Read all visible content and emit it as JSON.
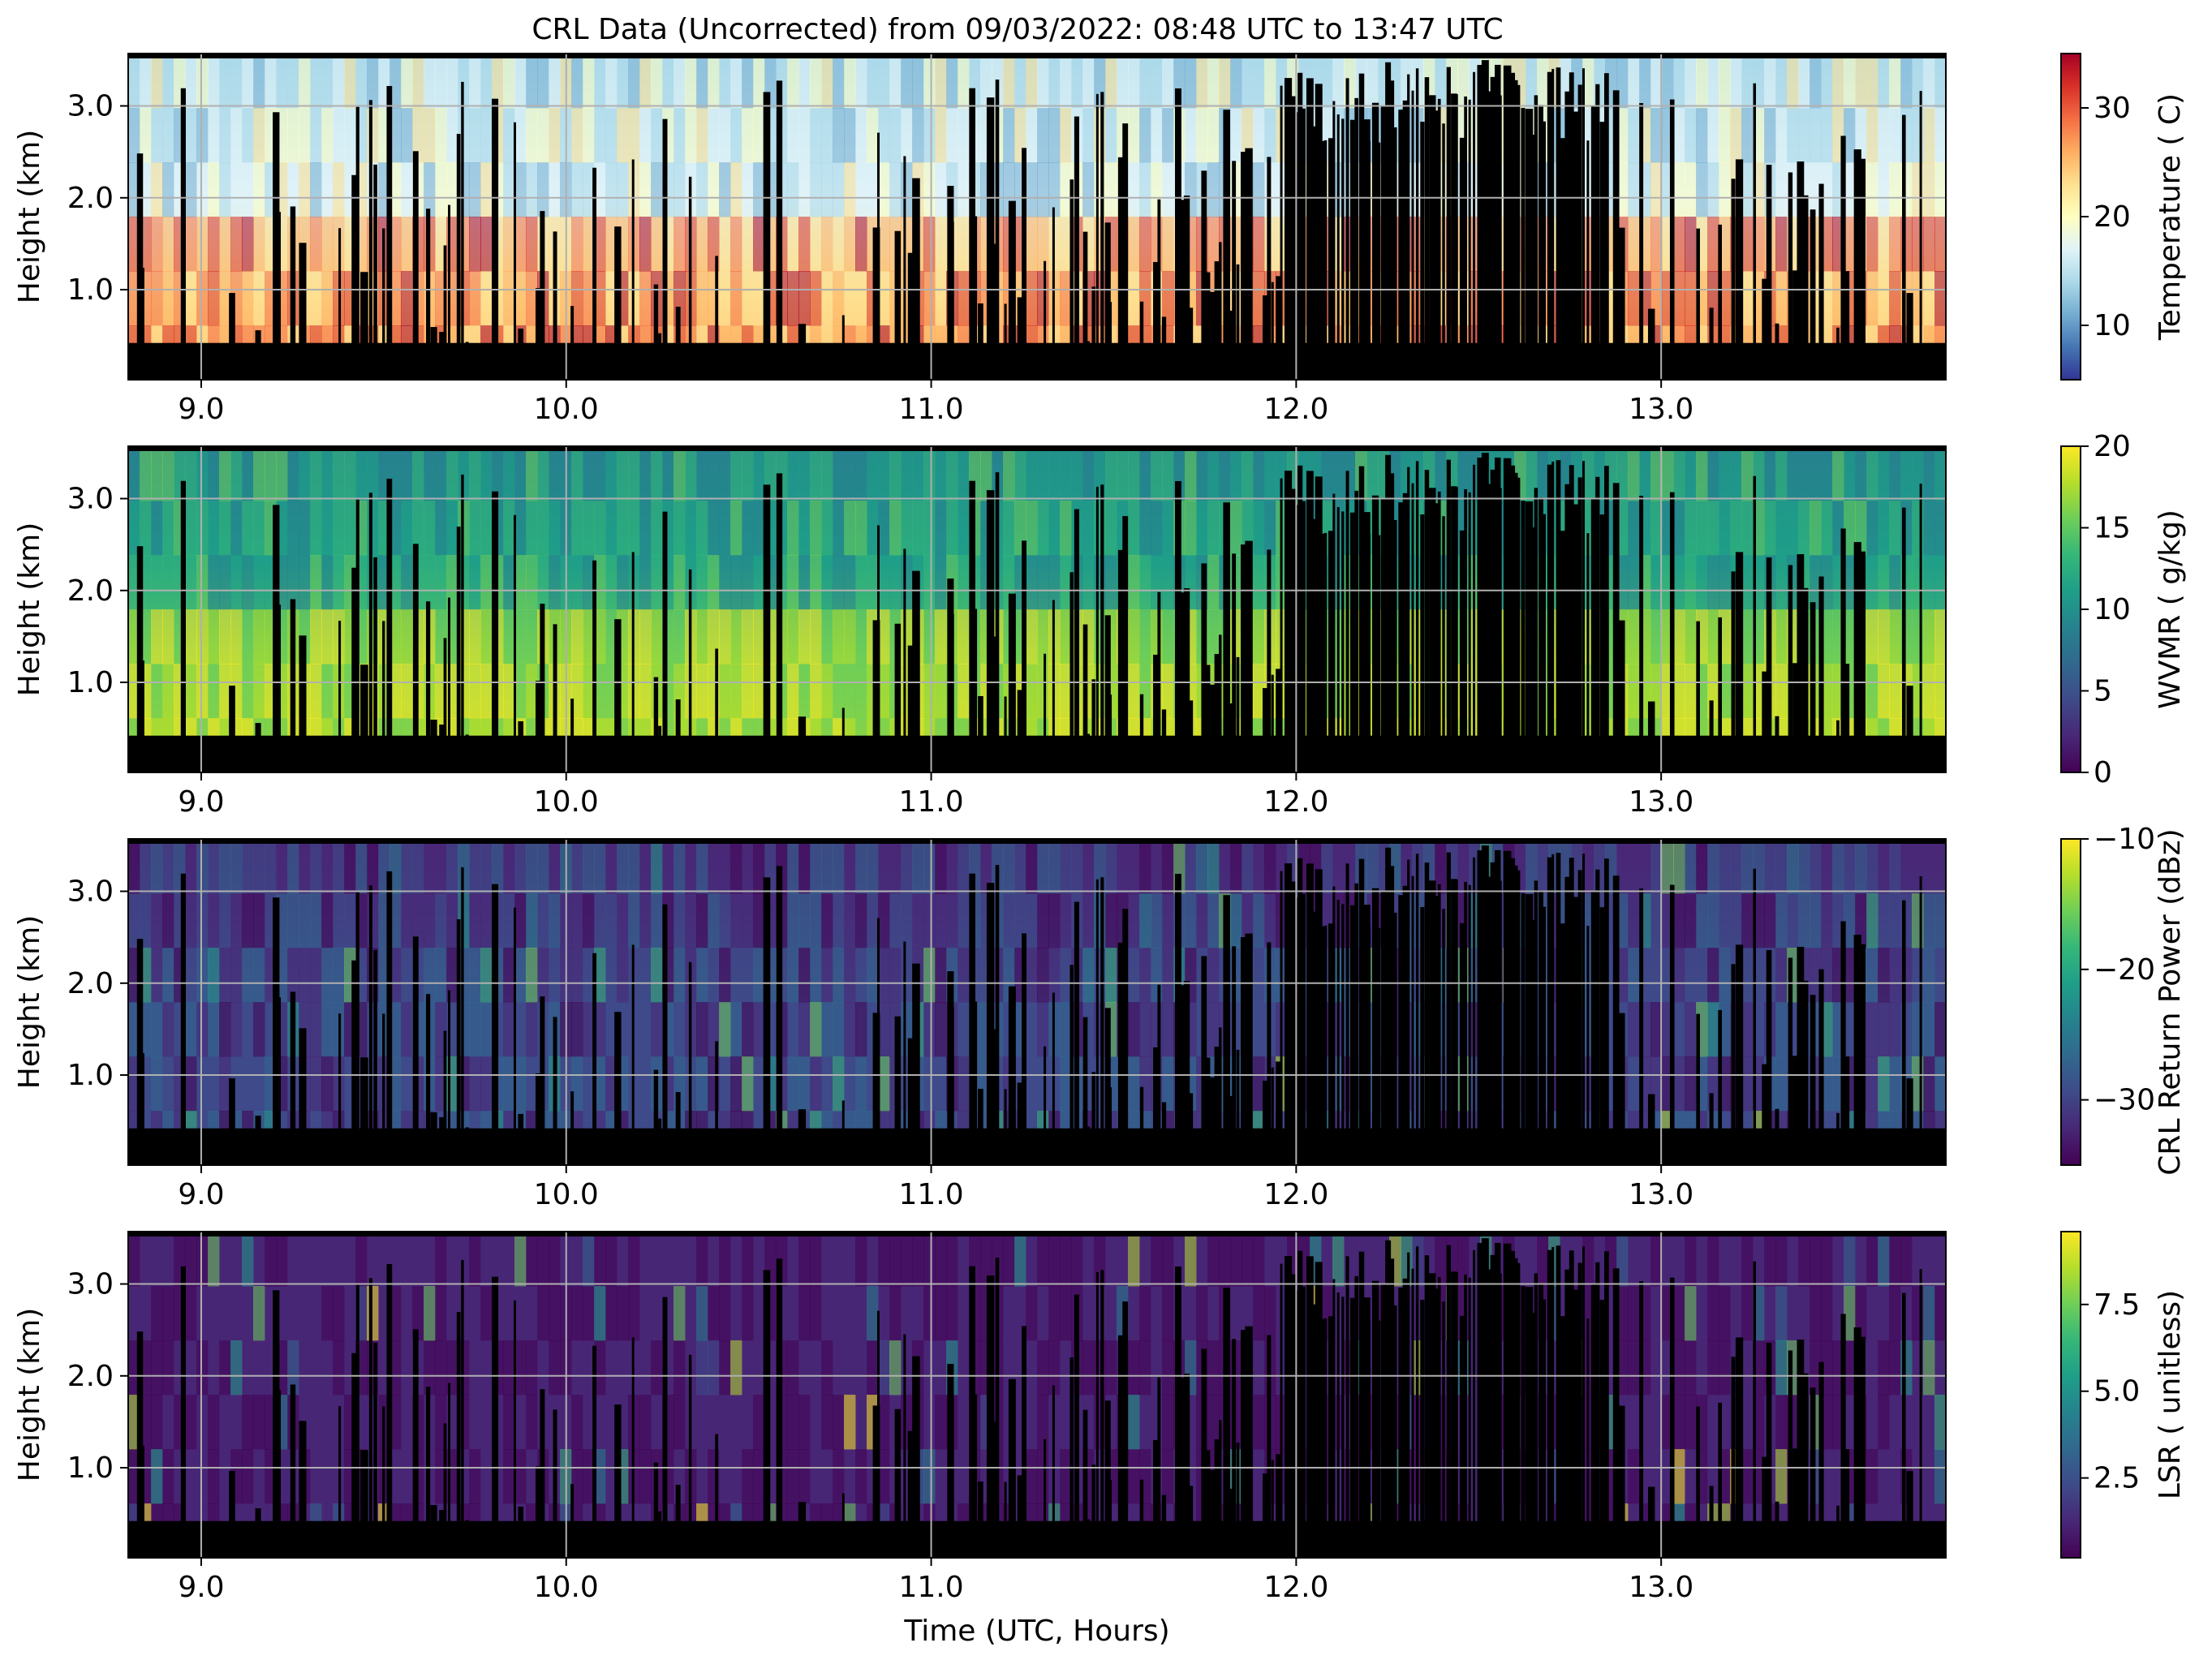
{
  "figure": {
    "title": "CRL Data (Uncorrected) from 09/03/2022: 08:48 UTC to 13:47 UTC",
    "xlabel": "Time (UTC, Hours)"
  },
  "chart_data": [
    {
      "type": "heatmap",
      "title": "CRL Data (Uncorrected) from 09/03/2022: 08:48 UTC to 13:47 UTC",
      "ylabel": "Height (km)",
      "xlabel": "",
      "xlim": [
        8.8,
        13.78
      ],
      "ylim": [
        0.02,
        3.57
      ],
      "xticks": [
        "9.0",
        "10.0",
        "11.0",
        "12.0",
        "13.0"
      ],
      "yticks": [
        "1.0",
        "2.0",
        "3.0"
      ],
      "grid": true,
      "colormap": "RdYlBu_r",
      "colorbar": {
        "label": "Temperature ( C)",
        "range": [
          5,
          35
        ],
        "ticks": [
          "10",
          "20",
          "30"
        ]
      },
      "colors": [
        "#313695",
        "#4575b4",
        "#74add1",
        "#abd9e9",
        "#e0f3f8",
        "#ffffbf",
        "#fee090",
        "#fdae61",
        "#f46d43",
        "#d73027",
        "#a50026"
      ]
    },
    {
      "type": "heatmap",
      "ylabel": "Height (km)",
      "xlabel": "",
      "xlim": [
        8.8,
        13.78
      ],
      "ylim": [
        0.02,
        3.57
      ],
      "xticks": [
        "9.0",
        "10.0",
        "11.0",
        "12.0",
        "13.0"
      ],
      "yticks": [
        "1.0",
        "2.0",
        "3.0"
      ],
      "grid": true,
      "colormap": "viridis",
      "colorbar": {
        "label": "WVMR ( g/kg)",
        "range": [
          0,
          20
        ],
        "ticks": [
          "0",
          "5",
          "10",
          "15",
          "20"
        ]
      },
      "colors": [
        "#440154",
        "#482777",
        "#3e4a89",
        "#31688e",
        "#26828e",
        "#1f9e89",
        "#35b779",
        "#6ece58",
        "#b5de2b",
        "#fde725"
      ]
    },
    {
      "type": "heatmap",
      "ylabel": "Height (km)",
      "xlabel": "",
      "xlim": [
        8.8,
        13.78
      ],
      "ylim": [
        0.02,
        3.57
      ],
      "xticks": [
        "9.0",
        "10.0",
        "11.0",
        "12.0",
        "13.0"
      ],
      "yticks": [
        "1.0",
        "2.0",
        "3.0"
      ],
      "grid": true,
      "colormap": "viridis",
      "colorbar": {
        "label": "CRL Return Power (dBz)",
        "range": [
          -35,
          -10
        ],
        "ticks": [
          "−30",
          "−20",
          "−10"
        ]
      },
      "colors": [
        "#440154",
        "#482777",
        "#3e4a89",
        "#31688e",
        "#26828e",
        "#1f9e89",
        "#35b779",
        "#6ece58",
        "#b5de2b",
        "#fde725"
      ]
    },
    {
      "type": "heatmap",
      "ylabel": "Height (km)",
      "xlabel": "Time (UTC, Hours)",
      "xlim": [
        8.8,
        13.78
      ],
      "ylim": [
        0.02,
        3.57
      ],
      "xticks": [
        "9.0",
        "10.0",
        "11.0",
        "12.0",
        "13.0"
      ],
      "yticks": [
        "1.0",
        "2.0",
        "3.0"
      ],
      "grid": true,
      "colormap": "viridis",
      "colorbar": {
        "label": "LSR ( unitless)",
        "range": [
          0.2,
          9.6
        ],
        "ticks": [
          "2.5",
          "5.0",
          "7.5"
        ]
      },
      "colors": [
        "#440154",
        "#482777",
        "#3e4a89",
        "#31688e",
        "#26828e",
        "#1f9e89",
        "#35b779",
        "#6ece58",
        "#b5de2b",
        "#fde725"
      ]
    }
  ]
}
